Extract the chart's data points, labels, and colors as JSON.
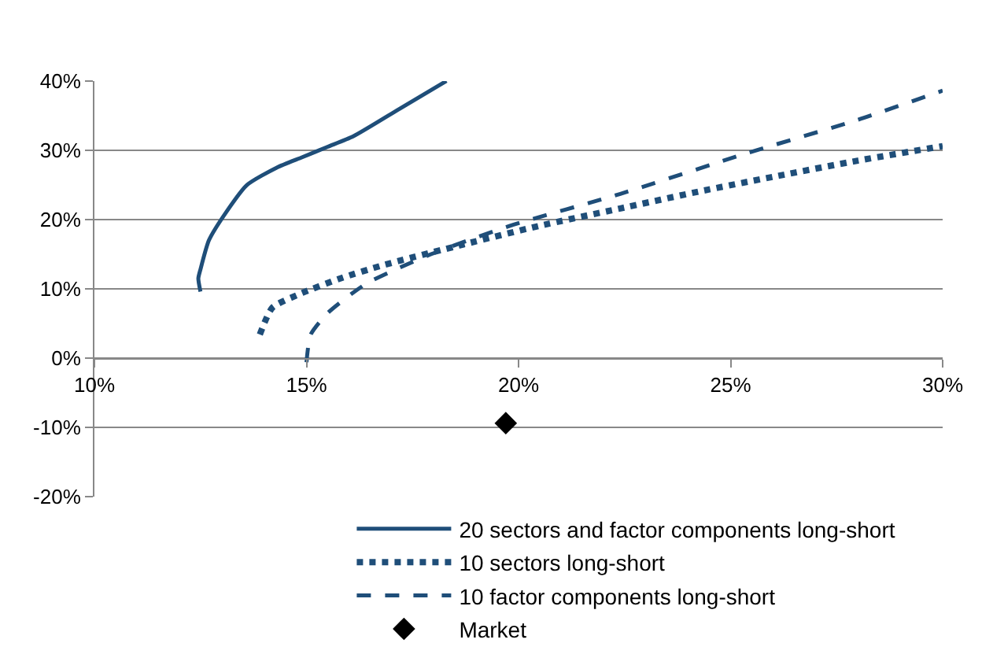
{
  "chart_data": {
    "type": "line",
    "xlim": [
      10,
      30
    ],
    "xticks": [
      {
        "value": 10,
        "label": "10%"
      },
      {
        "value": 15,
        "label": "15%"
      },
      {
        "value": 20,
        "label": "20%"
      },
      {
        "value": 25,
        "label": "25%"
      },
      {
        "value": 30,
        "label": "30%"
      }
    ],
    "ylim": [
      -20,
      40
    ],
    "yticks": [
      {
        "value": -20,
        "label": "-20%"
      },
      {
        "value": -10,
        "label": "-10%"
      },
      {
        "value": 0,
        "label": "0%"
      },
      {
        "value": 10,
        "label": "10%"
      },
      {
        "value": 20,
        "label": "20%"
      },
      {
        "value": 30,
        "label": "30%"
      },
      {
        "value": 40,
        "label": "40%"
      }
    ],
    "grid": "y",
    "legend": "bottom",
    "series": [
      {
        "name": "20 sectors and factor components long-short",
        "color": "#1f4e79",
        "line_style": "solid",
        "marker": "none",
        "x": [
          12.5,
          12.45,
          12.5,
          12.7,
          13.1,
          13.6,
          14.3,
          14.9,
          15.5,
          16.1,
          17.2,
          18.3
        ],
        "values": [
          9.6,
          11.5,
          12.8,
          17,
          21,
          25,
          27.5,
          29,
          30.5,
          32,
          36,
          40
        ]
      },
      {
        "name": "10 sectors long-short",
        "color": "#1f4e79",
        "line_style": "dotted",
        "marker": "none",
        "x": [
          13.9,
          14.2,
          14.9,
          15.8,
          16.8,
          18.7,
          20.5,
          22.4,
          24.3,
          26.2,
          28,
          30
        ],
        "values": [
          3.4,
          7.3,
          9.4,
          11.5,
          13.4,
          16.4,
          19.1,
          21.6,
          24.1,
          26.4,
          28.5,
          30.6
        ]
      },
      {
        "name": "10 factor components long-short",
        "color": "#1f4e79",
        "line_style": "dashed",
        "marker": "none",
        "x": [
          15,
          15.1,
          15.5,
          16.4,
          17.9,
          19.8,
          22.4,
          25.4,
          28,
          30
        ],
        "values": [
          -0.6,
          3.4,
          6.5,
          10.7,
          14.9,
          19.1,
          23.7,
          29.6,
          34.4,
          38.6
        ]
      },
      {
        "name": "Market",
        "type": "scatter",
        "color": "#000000",
        "marker": "diamond",
        "x": [
          19.7
        ],
        "values": [
          -9.4
        ]
      }
    ]
  }
}
